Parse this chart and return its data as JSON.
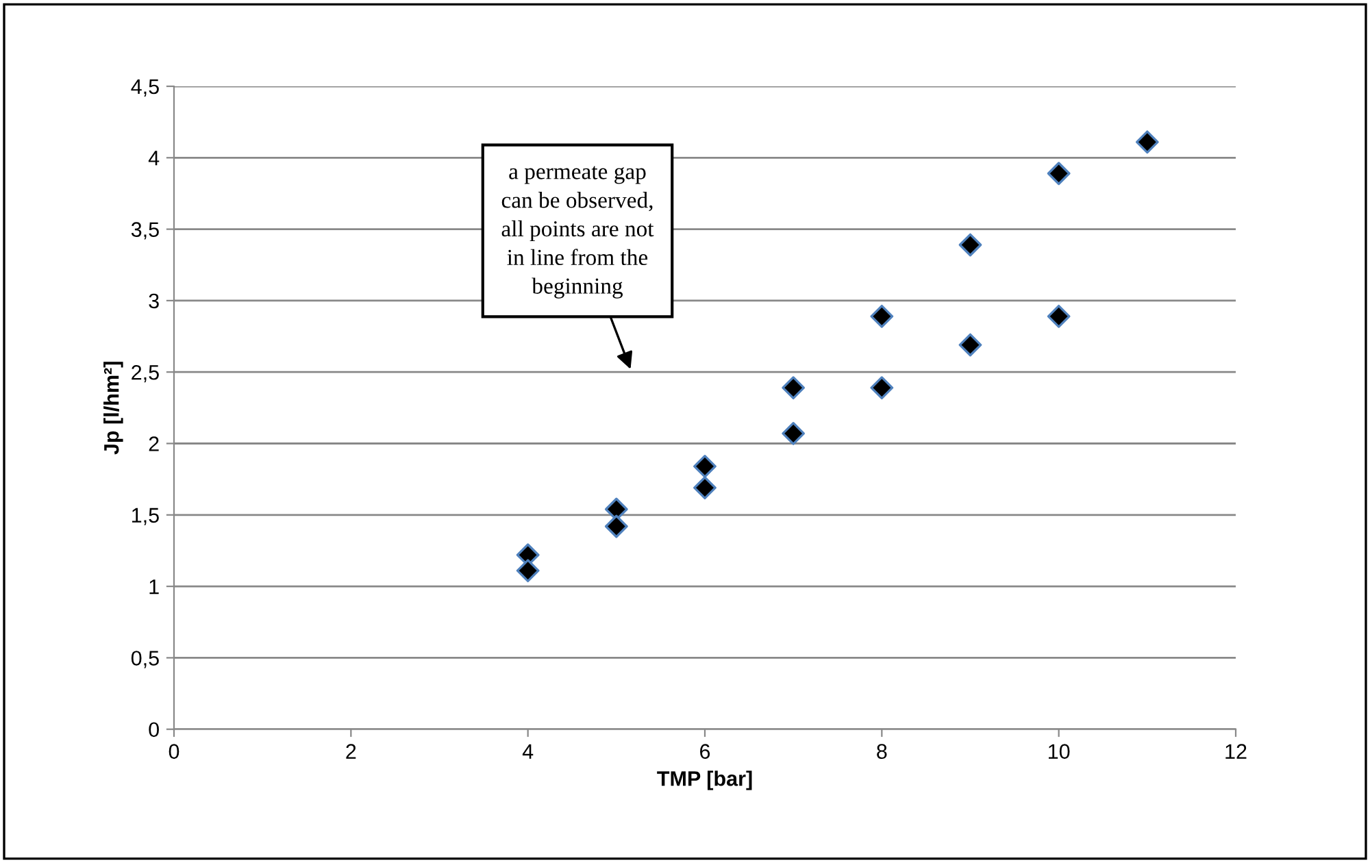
{
  "chart_data": {
    "type": "scatter",
    "xlabel": "TMP [bar]",
    "ylabel": "Jp [l/hm²]",
    "x": [
      4,
      4,
      5,
      5,
      6,
      6,
      7,
      7,
      8,
      8,
      9,
      9,
      10,
      10,
      11
    ],
    "series": [
      {
        "color": "#000000",
        "values": [
          1.22,
          1.11,
          1.54,
          1.42,
          1.84,
          1.69,
          2.39,
          2.07,
          2.89,
          2.39,
          3.39,
          2.69,
          3.89,
          2.89,
          4.11
        ]
      }
    ],
    "marker": "diamond",
    "grid": "y",
    "legend": false,
    "xlim": [
      0,
      12
    ],
    "xticks": [
      0,
      2,
      4,
      6,
      8,
      10,
      12
    ],
    "ylim": [
      0,
      4.5
    ],
    "yticks": [
      0,
      {
        "value": 0.5,
        "label": "0,5"
      },
      1,
      {
        "value": 1.5,
        "label": "1,5"
      },
      2,
      {
        "value": 2.5,
        "label": "2,5"
      },
      3,
      {
        "value": 3.5,
        "label": "3,5"
      },
      4,
      {
        "value": 4.5,
        "label": "4,5"
      }
    ],
    "annotations": [
      "a permeate gap\ncan be observed,\nall points are not\nin line from the\nbeginning"
    ]
  }
}
